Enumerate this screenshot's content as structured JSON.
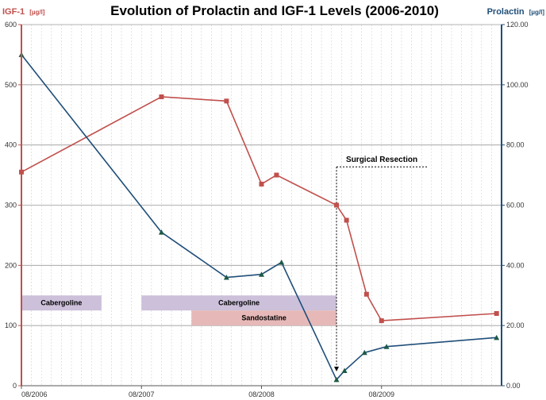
{
  "chart_data": {
    "type": "line",
    "title": "Evolution of Prolactin and IGF-1 Levels (2006-2010)",
    "left_axis": {
      "label": "IGF-1",
      "unit": "[µg/l]",
      "range": [
        0,
        600
      ],
      "ticks": [
        "0",
        "100",
        "200",
        "300",
        "400",
        "500",
        "600"
      ]
    },
    "right_axis": {
      "label": "Prolactin",
      "unit": "[µg/l]",
      "range": [
        0,
        120
      ],
      "ticks": [
        "0.00",
        "20.00",
        "40.00",
        "60.00",
        "80.00",
        "100.00",
        "120.00"
      ]
    },
    "x_axis": {
      "range_months": [
        0,
        48
      ],
      "tick_labels": [
        "08/2006",
        "08/2007",
        "08/2008",
        "08/2009"
      ],
      "tick_months": [
        0,
        12,
        24,
        36
      ]
    },
    "series": [
      {
        "name": "IGF-1",
        "axis": "left",
        "color": "#c0504d",
        "marker": "square",
        "x": [
          0,
          14,
          20.5,
          24,
          25.5,
          31.5,
          32.5,
          34.5,
          36,
          47.5
        ],
        "values": [
          355,
          480,
          473,
          335,
          350,
          300,
          275,
          152,
          108,
          120
        ]
      },
      {
        "name": "Prolactin",
        "axis": "right",
        "color": "#1f4e79",
        "marker": "triangle",
        "x": [
          0,
          14,
          20.5,
          24,
          26,
          31.5,
          32.3,
          34.3,
          36.5,
          47.5
        ],
        "values": [
          110,
          51,
          36,
          37,
          41,
          2,
          5,
          11,
          13,
          16
        ]
      }
    ],
    "treatment_bars": [
      {
        "label": "Cabergoline",
        "start_month": 0,
        "end_month": 8,
        "row": 1,
        "color": "#ccc0da"
      },
      {
        "label": "Cabergoline",
        "start_month": 12,
        "end_month": 31.5,
        "row": 1,
        "color": "#ccc0da"
      },
      {
        "label": "Sandostatine",
        "start_month": 17,
        "end_month": 31.5,
        "row": 2,
        "color": "#e6b9b8"
      }
    ],
    "annotations": [
      {
        "text": "Surgical Resection",
        "month": 31.5
      }
    ]
  }
}
